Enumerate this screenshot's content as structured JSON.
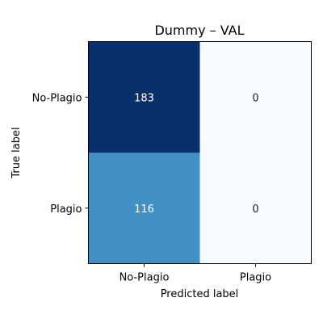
{
  "chart_data": {
    "type": "heatmap",
    "title": "Dummy – VAL",
    "xlabel": "Predicted label",
    "ylabel": "True label",
    "x_categories": [
      "No-Plagio",
      "Plagio"
    ],
    "y_categories": [
      "No-Plagio",
      "Plagio"
    ],
    "values": [
      [
        183,
        0
      ],
      [
        116,
        0
      ]
    ],
    "colormap": "Blues",
    "colorbar": false,
    "grid": false
  }
}
